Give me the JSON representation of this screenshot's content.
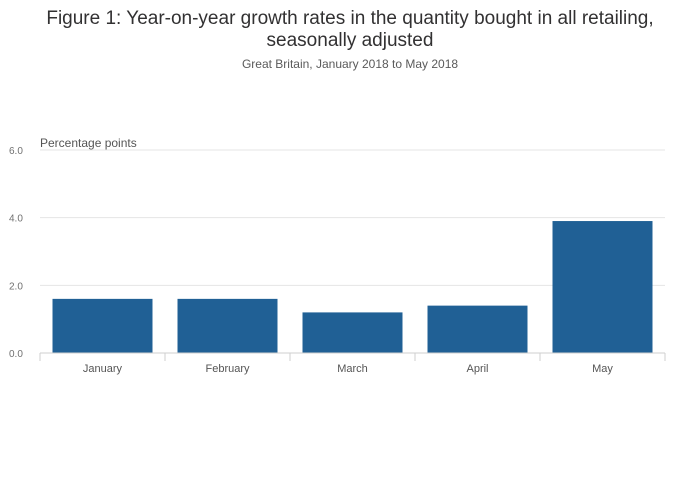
{
  "chart_data": {
    "type": "bar",
    "title": "Figure 1: Year-on-year growth rates in the quantity bought in all retailing, seasonally adjusted",
    "subtitle": "Great Britain, January 2018 to May 2018",
    "ylabel": "Percentage points",
    "xlabel": "",
    "categories": [
      "January",
      "February",
      "March",
      "April",
      "May"
    ],
    "values": [
      1.6,
      1.6,
      1.2,
      1.4,
      3.9
    ],
    "ylim": [
      0,
      6
    ],
    "yticks": [
      "0.0",
      "2.0",
      "4.0",
      "6.0"
    ],
    "grid": true,
    "bar_color": "#206095"
  }
}
